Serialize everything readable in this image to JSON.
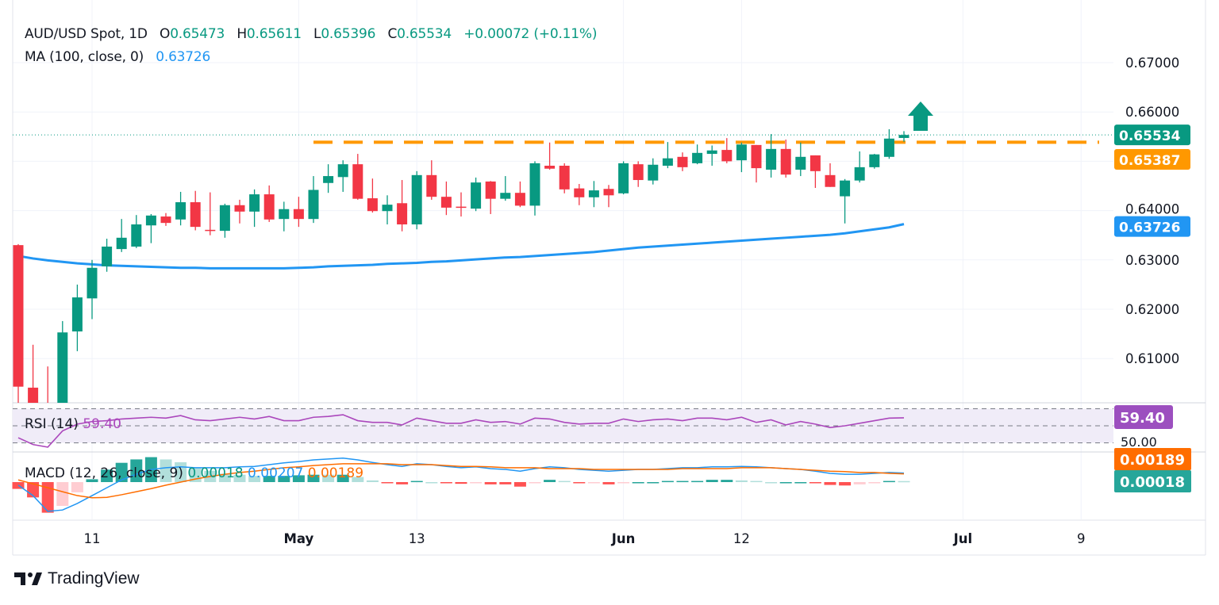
{
  "legend": {
    "symbol": "AUD/USD Spot, 1D",
    "open_label": "O",
    "open": "0.65473",
    "high_label": "H",
    "high": "0.65611",
    "low_label": "L",
    "low": "0.65396",
    "close_label": "C",
    "close": "0.65534",
    "change": "+0.00072 (+0.11%)",
    "ma_label": "MA (100, close, 0)",
    "ma_value": "0.63726"
  },
  "rsi_legend": {
    "label": "RSI (14)",
    "value": "59.40"
  },
  "macd_legend": {
    "label": "MACD (12, 26, close, 9)",
    "hist": "0.00018",
    "macd": "0.00207",
    "signal": "0.00189"
  },
  "brand": {
    "name": "TradingView"
  },
  "colors": {
    "up": "#089981",
    "down": "#f23645",
    "ma": "#2196f3",
    "resistance": "#ff9800",
    "rsi": "#ab47bc",
    "macd": "#2196f3",
    "signal": "#ff6d00"
  },
  "chart_data": [
    {
      "type": "candlestick",
      "title": "AUD/USD Spot, 1D",
      "ylim": [
        0.6,
        0.672
      ],
      "grid": true,
      "y_ticks": [
        "0.67000",
        "0.66000",
        "0.64000",
        "0.63000",
        "0.62000",
        "0.61000"
      ],
      "x_ticks": [
        "11",
        "May",
        "13",
        "Jun",
        "12",
        "Jul",
        "9"
      ],
      "price_badges": [
        {
          "label": "0.65534",
          "value": 0.65534,
          "color": "#089981"
        },
        {
          "label": "0.65387",
          "value": 0.65387,
          "color": "#ff9800"
        },
        {
          "label": "0.63726",
          "value": 0.63726,
          "color": "#2196f3"
        }
      ],
      "resistance_level": 0.65387,
      "annotation": "up-arrow-icon",
      "candles_ohlc": [
        [
          0.633,
          0.6332,
          0.599,
          0.6043
        ],
        [
          0.6041,
          0.6128,
          0.598,
          0.6
        ],
        [
          0.6,
          0.6084,
          0.5975,
          0.599
        ],
        [
          0.5985,
          0.6176,
          0.598,
          0.6153
        ],
        [
          0.6155,
          0.625,
          0.6115,
          0.6224
        ],
        [
          0.6222,
          0.63,
          0.618,
          0.6284
        ],
        [
          0.6287,
          0.6343,
          0.6276,
          0.6327
        ],
        [
          0.6322,
          0.6383,
          0.6316,
          0.6345
        ],
        [
          0.6327,
          0.6391,
          0.6324,
          0.6372
        ],
        [
          0.637,
          0.6393,
          0.6334,
          0.639
        ],
        [
          0.6388,
          0.6395,
          0.6369,
          0.6375
        ],
        [
          0.6382,
          0.6438,
          0.637,
          0.6417
        ],
        [
          0.6417,
          0.644,
          0.636,
          0.6367
        ],
        [
          0.6361,
          0.6437,
          0.635,
          0.636
        ],
        [
          0.6359,
          0.6414,
          0.6345,
          0.6411
        ],
        [
          0.6411,
          0.6422,
          0.6374,
          0.6398
        ],
        [
          0.6398,
          0.6443,
          0.6367,
          0.6433
        ],
        [
          0.6433,
          0.6451,
          0.6377,
          0.6382
        ],
        [
          0.6383,
          0.6418,
          0.6358,
          0.6403
        ],
        [
          0.6403,
          0.6428,
          0.6367,
          0.6383
        ],
        [
          0.6383,
          0.647,
          0.6375,
          0.6442
        ],
        [
          0.6456,
          0.6494,
          0.6436,
          0.647
        ],
        [
          0.6468,
          0.6502,
          0.6438,
          0.6494
        ],
        [
          0.6494,
          0.6515,
          0.6422,
          0.6424
        ],
        [
          0.6425,
          0.6465,
          0.6396,
          0.6399
        ],
        [
          0.6399,
          0.6431,
          0.6372,
          0.6412
        ],
        [
          0.6415,
          0.6462,
          0.6358,
          0.6372
        ],
        [
          0.6372,
          0.648,
          0.6362,
          0.6472
        ],
        [
          0.6472,
          0.6502,
          0.6422,
          0.6428
        ],
        [
          0.6428,
          0.6459,
          0.6391,
          0.6406
        ],
        [
          0.6408,
          0.6437,
          0.6388,
          0.6407
        ],
        [
          0.6404,
          0.6467,
          0.6399,
          0.6457
        ],
        [
          0.6459,
          0.646,
          0.6393,
          0.6424
        ],
        [
          0.6424,
          0.647,
          0.642,
          0.6436
        ],
        [
          0.6436,
          0.6459,
          0.6407,
          0.641
        ],
        [
          0.641,
          0.65,
          0.639,
          0.6496
        ],
        [
          0.6491,
          0.6538,
          0.6483,
          0.6485
        ],
        [
          0.6491,
          0.6496,
          0.6435,
          0.6443
        ],
        [
          0.6445,
          0.6454,
          0.6411,
          0.6427
        ],
        [
          0.6427,
          0.646,
          0.6407,
          0.6441
        ],
        [
          0.6444,
          0.6452,
          0.6407,
          0.6431
        ],
        [
          0.6435,
          0.65,
          0.6433,
          0.6496
        ],
        [
          0.6494,
          0.65,
          0.6448,
          0.6462
        ],
        [
          0.6461,
          0.6506,
          0.6453,
          0.6493
        ],
        [
          0.6491,
          0.6539,
          0.6486,
          0.6506
        ],
        [
          0.6509,
          0.6518,
          0.648,
          0.6488
        ],
        [
          0.6496,
          0.6534,
          0.6494,
          0.6517
        ],
        [
          0.6515,
          0.6532,
          0.6491,
          0.6522
        ],
        [
          0.6523,
          0.6547,
          0.6496,
          0.65
        ],
        [
          0.6502,
          0.6538,
          0.6478,
          0.6534
        ],
        [
          0.6533,
          0.6533,
          0.6457,
          0.6486
        ],
        [
          0.6483,
          0.6555,
          0.6467,
          0.6525
        ],
        [
          0.6525,
          0.6544,
          0.6467,
          0.6473
        ],
        [
          0.6483,
          0.6538,
          0.647,
          0.6509
        ],
        [
          0.6512,
          0.6512,
          0.6446,
          0.648
        ],
        [
          0.6472,
          0.6496,
          0.6448,
          0.6448
        ],
        [
          0.6429,
          0.6464,
          0.6374,
          0.6461
        ],
        [
          0.6461,
          0.652,
          0.6457,
          0.6488
        ],
        [
          0.6488,
          0.6515,
          0.6485,
          0.6514
        ],
        [
          0.6509,
          0.6565,
          0.6505,
          0.6546
        ],
        [
          0.65473,
          0.65611,
          0.65396,
          0.65534
        ]
      ],
      "ma_100": [
        0.6308,
        0.6303,
        0.6299,
        0.6296,
        0.6293,
        0.6291,
        0.6289,
        0.6288,
        0.6287,
        0.6286,
        0.6285,
        0.6284,
        0.6284,
        0.6283,
        0.6283,
        0.6283,
        0.6283,
        0.6283,
        0.6283,
        0.6284,
        0.6285,
        0.6287,
        0.6288,
        0.6289,
        0.629,
        0.6292,
        0.6293,
        0.6294,
        0.6296,
        0.6297,
        0.6299,
        0.6301,
        0.6303,
        0.6305,
        0.6306,
        0.6308,
        0.631,
        0.6312,
        0.6314,
        0.6316,
        0.6319,
        0.6322,
        0.6325,
        0.6327,
        0.6329,
        0.6331,
        0.6333,
        0.6335,
        0.6337,
        0.6339,
        0.6341,
        0.6343,
        0.6345,
        0.6347,
        0.6349,
        0.6351,
        0.6354,
        0.6358,
        0.6362,
        0.6366,
        0.63726
      ]
    },
    {
      "type": "line",
      "title": "RSI (14)",
      "ylim": [
        20,
        75
      ],
      "bands": [
        70,
        50,
        30
      ],
      "band_label": "50.00",
      "last_label": "59.40",
      "values": [
        36,
        28,
        25,
        44,
        52,
        55,
        56,
        58,
        59,
        60,
        59,
        62,
        57,
        56,
        58,
        60,
        58,
        61,
        56,
        56,
        60,
        61,
        63,
        56,
        54,
        54,
        51,
        59,
        56,
        53,
        53,
        57,
        54,
        55,
        52,
        59,
        58,
        54,
        52,
        53,
        53,
        58,
        55,
        57,
        58,
        56,
        59,
        59,
        57,
        60,
        54,
        57,
        51,
        55,
        52,
        48,
        50,
        53,
        56,
        59,
        59.4
      ]
    },
    {
      "type": "line",
      "title": "MACD (12, 26, close, 9)",
      "series": [
        {
          "name": "MACD",
          "values": [
            -0.0007,
            -0.0031,
            -0.0067,
            -0.0064,
            -0.0049,
            -0.0031,
            -0.0013,
            0.0005,
            0.0018,
            0.0029,
            0.0033,
            0.0035,
            0.0033,
            0.0033,
            0.0033,
            0.0035,
            0.0036,
            0.004,
            0.0044,
            0.0047,
            0.0051,
            0.0053,
            0.0055,
            0.0051,
            0.0045,
            0.004,
            0.0036,
            0.0042,
            0.004,
            0.0036,
            0.0033,
            0.0035,
            0.0031,
            0.0029,
            0.0025,
            0.0031,
            0.0035,
            0.0033,
            0.0029,
            0.0027,
            0.0025,
            0.0027,
            0.0029,
            0.0029,
            0.0031,
            0.0033,
            0.0033,
            0.0035,
            0.0035,
            0.0036,
            0.0035,
            0.0033,
            0.0031,
            0.0029,
            0.0025,
            0.002,
            0.0018,
            0.0018,
            0.002,
            0.0022,
            0.00207
          ]
        },
        {
          "name": "Signal",
          "values": [
            0.0005,
            -0.0004,
            -0.0013,
            -0.0022,
            -0.0031,
            -0.0036,
            -0.0035,
            -0.0029,
            -0.0022,
            -0.0015,
            -0.0007,
            0.0,
            0.0007,
            0.0013,
            0.0018,
            0.0022,
            0.0025,
            0.0029,
            0.0033,
            0.0035,
            0.0038,
            0.004,
            0.0042,
            0.0042,
            0.0042,
            0.0042,
            0.004,
            0.004,
            0.004,
            0.0038,
            0.0036,
            0.0036,
            0.0035,
            0.0033,
            0.0033,
            0.0033,
            0.0031,
            0.0031,
            0.0031,
            0.0029,
            0.0029,
            0.0029,
            0.0029,
            0.0029,
            0.0029,
            0.0031,
            0.0031,
            0.0031,
            0.0031,
            0.0033,
            0.0033,
            0.0033,
            0.0031,
            0.0029,
            0.0027,
            0.0025,
            0.0024,
            0.0022,
            0.0022,
            0.002,
            0.00189
          ]
        }
      ],
      "badges": [
        {
          "label": "0.00189",
          "color": "#ff6d00"
        },
        {
          "label": "0.00018",
          "color": "#26a69a"
        }
      ]
    }
  ]
}
